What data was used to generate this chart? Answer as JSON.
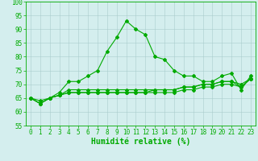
{
  "xlabel": "Humidité relative (%)",
  "ylabel": "",
  "bg_color": "#d4eeee",
  "grid_color": "#aacccc",
  "line_color": "#00aa00",
  "xlim": [
    -0.5,
    23.5
  ],
  "ylim": [
    55,
    100
  ],
  "yticks": [
    55,
    60,
    65,
    70,
    75,
    80,
    85,
    90,
    95,
    100
  ],
  "xticks": [
    0,
    1,
    2,
    3,
    4,
    5,
    6,
    7,
    8,
    9,
    10,
    11,
    12,
    13,
    14,
    15,
    16,
    17,
    18,
    19,
    20,
    21,
    22,
    23
  ],
  "series": [
    [
      65,
      64,
      65,
      67,
      71,
      71,
      73,
      75,
      82,
      87,
      93,
      90,
      88,
      80,
      79,
      75,
      73,
      73,
      71,
      71,
      73,
      74,
      68,
      73
    ],
    [
      65,
      63,
      65,
      66,
      68,
      68,
      68,
      68,
      68,
      68,
      68,
      68,
      68,
      68,
      68,
      68,
      69,
      69,
      70,
      70,
      71,
      71,
      69,
      72
    ],
    [
      65,
      63,
      65,
      66,
      67,
      67,
      67,
      67,
      67,
      67,
      67,
      67,
      67,
      67,
      67,
      67,
      68,
      68,
      69,
      69,
      70,
      70,
      69,
      72
    ],
    [
      65,
      63,
      65,
      66,
      67,
      67,
      67,
      67,
      67,
      67,
      67,
      67,
      67,
      68,
      68,
      68,
      69,
      69,
      70,
      70,
      71,
      71,
      70,
      72
    ]
  ],
  "marker": "D",
  "markersize": 2.0,
  "linewidth": 0.8,
  "xlabel_fontsize": 7,
  "tick_fontsize": 5.5
}
